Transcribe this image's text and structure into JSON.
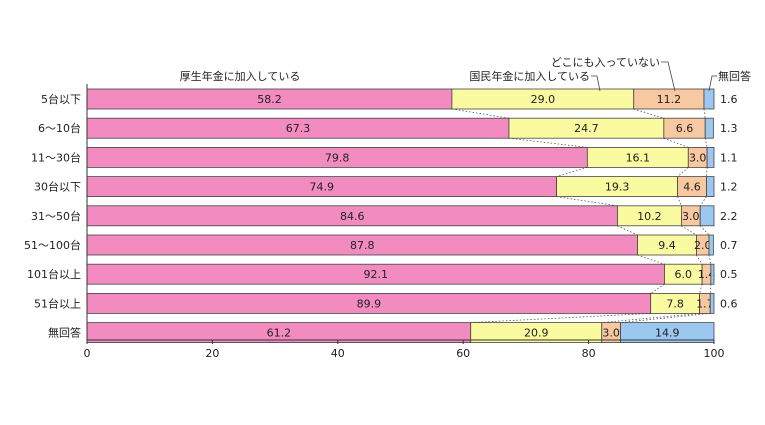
{
  "chart_data": {
    "type": "bar",
    "orientation": "horizontal-stacked",
    "title": "",
    "xlabel": "",
    "ylabel": "",
    "xlim": [
      0,
      100
    ],
    "xticks": [
      "0",
      "20",
      "40",
      "60",
      "80",
      "100"
    ],
    "categories": [
      "5台以下",
      "6〜10台",
      "11〜30台",
      "30台以下",
      "31〜50台",
      "51〜100台",
      "101台以上",
      "51台以上",
      "無回答"
    ],
    "series": [
      {
        "name": "厚生年金に加入している",
        "color": "#f28cc0",
        "values": [
          58.2,
          67.3,
          79.8,
          74.9,
          84.6,
          87.8,
          92.1,
          89.9,
          61.2
        ],
        "labels": [
          "58.2",
          "67.3",
          "79.8",
          "74.9",
          "84.6",
          "87.8",
          "92.1",
          "89.9",
          "61.2"
        ]
      },
      {
        "name": "国民年金に加入している",
        "color": "#fafaa0",
        "values": [
          29.0,
          24.7,
          16.1,
          19.3,
          10.2,
          9.4,
          6.0,
          7.8,
          20.9
        ],
        "labels": [
          "29.0",
          "24.7",
          "16.1",
          "19.3",
          "10.2",
          "9.4",
          "6.0",
          "7.8",
          "20.9"
        ]
      },
      {
        "name": "どこにも入っていない",
        "color": "#f8c8a0",
        "values": [
          11.2,
          6.6,
          3.0,
          4.6,
          3.0,
          2.0,
          1.4,
          1.7,
          3.0
        ],
        "labels": [
          "11.2",
          "6.6",
          "3.0",
          "4.6",
          "3.0",
          "2.0",
          "1.4",
          "1.7",
          "3.0"
        ]
      },
      {
        "name": "無回答",
        "color": "#9cc8f0",
        "values": [
          1.6,
          1.3,
          1.1,
          1.2,
          2.2,
          0.7,
          0.5,
          0.6,
          14.9
        ],
        "labels": [
          "1.6",
          "1.3",
          "1.1",
          "1.2",
          "2.2",
          "0.7",
          "0.5",
          "0.6",
          "14.9"
        ]
      }
    ],
    "grid": false,
    "legend": "callouts-top"
  }
}
